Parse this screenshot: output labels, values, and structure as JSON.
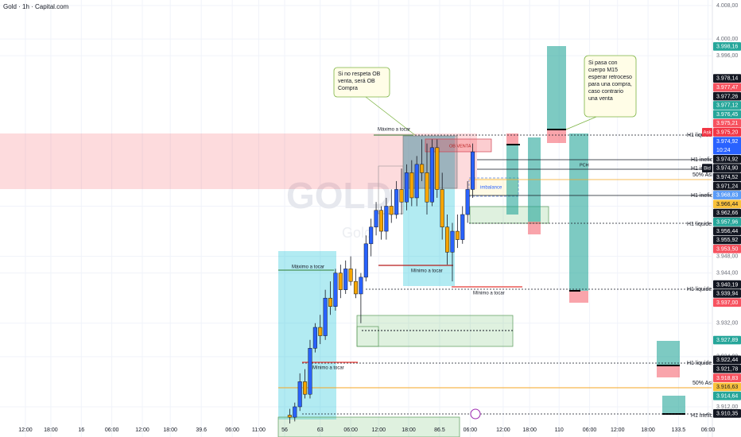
{
  "header": {
    "symbol": "Gold · 1h · Capital.com"
  },
  "watermark": {
    "symbol": "GOLD",
    "name": "Gold"
  },
  "chart_data": {
    "type": "candlestick",
    "x": [
      57,
      58,
      59,
      60,
      61,
      62,
      63,
      64,
      65,
      66,
      67,
      68,
      69,
      70,
      71,
      72,
      73,
      74,
      75,
      76,
      77,
      78,
      79,
      80,
      81,
      82,
      83,
      84,
      85,
      86,
      87,
      88,
      89,
      90,
      91,
      92,
      93
    ],
    "open": [
      3910,
      3909.5,
      3912,
      3918,
      3915,
      3926,
      3931,
      3929,
      3938,
      3936,
      3944,
      3940,
      3945,
      3942,
      3939,
      3943,
      3951,
      3955,
      3959,
      3954,
      3960,
      3958,
      3964,
      3961,
      3968,
      3962,
      3970,
      3968,
      3961,
      3974,
      3964,
      3955,
      3949,
      3954,
      3952,
      3958,
      3964
    ],
    "high": [
      3911.5,
      3913,
      3920,
      3921,
      3928,
      3932,
      3934,
      3940,
      3942,
      3945,
      3946,
      3947,
      3948,
      3945,
      3944,
      3953,
      3957,
      3961,
      3960,
      3962,
      3964,
      3966,
      3969,
      3970,
      3971,
      3972,
      3976,
      3975,
      3976,
      3976,
      3968,
      3958,
      3956,
      3958,
      3960,
      3966,
      3975
    ],
    "low": [
      3908,
      3908.5,
      3911,
      3914,
      3914,
      3925,
      3927,
      3928,
      3934,
      3935,
      3938,
      3939,
      3941,
      3938,
      3932,
      3942,
      3948,
      3953,
      3952,
      3952,
      3956,
      3957,
      3958,
      3959,
      3960,
      3960,
      3966,
      3958,
      3960,
      3962,
      3952,
      3946,
      3942,
      3950,
      3951,
      3956,
      3962
    ],
    "close": [
      3909.5,
      3912,
      3918,
      3915,
      3926,
      3931,
      3929,
      3938,
      3936,
      3944,
      3940,
      3945,
      3942,
      3939,
      3943,
      3951,
      3955,
      3959,
      3954,
      3960,
      3958,
      3964,
      3961,
      3968,
      3962,
      3970,
      3968,
      3961,
      3974,
      3964,
      3955,
      3949,
      3954,
      3952,
      3958,
      3964,
      3973
    ],
    "up_color": "#2962ff",
    "down_color": "#f7a600",
    "xlim": [
      0,
      140
    ],
    "ylim": [
      3904.77,
      4009.33
    ],
    "xticks": [
      {
        "value": 5,
        "label": "12:00"
      },
      {
        "value": 10,
        "label": "18:00"
      },
      16,
      {
        "value": 22,
        "label": "06:00"
      },
      {
        "value": 28,
        "label": "12:00"
      },
      {
        "value": 33.5,
        "label": "18:00"
      },
      39.6,
      {
        "value": 45.7,
        "label": "06:00"
      },
      {
        "value": 50.9,
        "label": "11:00"
      },
      56,
      63,
      {
        "value": 69,
        "label": "06:00"
      },
      {
        "value": 74.5,
        "label": "12:00"
      },
      {
        "value": 80.4,
        "label": "18:00"
      },
      86.5,
      {
        "value": 92.5,
        "label": "06:00"
      },
      {
        "value": 99,
        "label": "12:00"
      },
      {
        "value": 104.2,
        "label": "18:00"
      },
      110,
      {
        "value": 116,
        "label": "06:00"
      },
      {
        "value": 121.5,
        "label": "12:00"
      },
      {
        "value": 127.5,
        "label": "18:00"
      },
      133.5,
      {
        "value": 139.3,
        "label": "06:00"
      }
    ],
    "yticks": [
      {
        "value": 4008,
        "label": "4.008,00"
      },
      {
        "value": 4000,
        "label": "4.000,00"
      },
      {
        "value": 3996,
        "label": "3.996,00"
      },
      {
        "value": 3960,
        "label": "3.960,00"
      },
      {
        "value": 3948,
        "label": "3.948,00"
      },
      {
        "value": 3944,
        "label": "3.944,00"
      },
      {
        "value": 3932,
        "label": "3.932,00"
      },
      {
        "value": 3924,
        "label": "3.924,00"
      },
      {
        "value": 3912,
        "label": "3.912,00"
      }
    ],
    "grid": true
  },
  "price_tags": [
    {
      "value": 3998.16,
      "label": "3.998,16",
      "color": "#26a69a"
    },
    {
      "value": 3978.14,
      "label": "3.978,14",
      "color": "#131722"
    },
    {
      "value": 3977.47,
      "label": "3.977,47",
      "color": "#f7525f"
    },
    {
      "value": 3977.26,
      "label": "3.977,26",
      "color": "#131722"
    },
    {
      "value": 3977.12,
      "label": "3.977,12",
      "color": "#26a69a"
    },
    {
      "value": 3976.45,
      "label": "3.976,45",
      "color": "#26a69a"
    },
    {
      "value": 3975.21,
      "label": "3.975,21",
      "color": "#f7525f"
    },
    {
      "value": 3975.2,
      "label": "3.975,20",
      "color": "#f23645",
      "badge": "Ask"
    },
    {
      "value": 3974.92,
      "label": "3.974,92",
      "color": "#2962ff",
      "sub": "10:24"
    },
    {
      "value": 3974.92,
      "label": "3.974,92",
      "color": "#131722"
    },
    {
      "value": 3974.9,
      "label": "3.974,90",
      "color": "#131722",
      "badge": "Bid"
    },
    {
      "value": 3974.52,
      "label": "3.974,52",
      "color": "#131722"
    },
    {
      "value": 3971.24,
      "label": "3.971,24",
      "color": "#131722"
    },
    {
      "value": 3968.83,
      "label": "3.968,83",
      "color": "#5b9cf6"
    },
    {
      "value": 3966.44,
      "label": "3.966,44",
      "color": "#f9c23c"
    },
    {
      "value": 3962.66,
      "label": "3.962,66",
      "color": "#131722"
    },
    {
      "value": 3957.96,
      "label": "3.957,96",
      "color": "#26a69a"
    },
    {
      "value": 3956.44,
      "label": "3.956,44",
      "color": "#131722"
    },
    {
      "value": 3955.92,
      "label": "3.955,92",
      "color": "#131722"
    },
    {
      "value": 3953.5,
      "label": "3.953,50",
      "color": "#f7525f"
    },
    {
      "value": 3940.19,
      "label": "3.940,19",
      "color": "#131722"
    },
    {
      "value": 3939.94,
      "label": "3.939,94",
      "color": "#131722"
    },
    {
      "value": 3937.0,
      "label": "3.937,00",
      "color": "#f7525f"
    },
    {
      "value": 3927.89,
      "label": "3.927,89",
      "color": "#26a69a"
    },
    {
      "value": 3922.44,
      "label": "3.922,44",
      "color": "#131722"
    },
    {
      "value": 3921.78,
      "label": "3.921,78",
      "color": "#131722"
    },
    {
      "value": 3918.83,
      "label": "3.918,83",
      "color": "#f7525f"
    },
    {
      "value": 3916.63,
      "label": "3.916,63",
      "color": "#f9c23c"
    },
    {
      "value": 3914.64,
      "label": "3.914,64",
      "color": "#26a69a"
    },
    {
      "value": 3910.35,
      "label": "3.910,35",
      "color": "#131722"
    }
  ],
  "notes": {
    "ob": [
      "Si no respeta OB",
      "venta, será OB",
      "Compra"
    ],
    "m15": [
      "Si pasa con",
      "cuerpo M15",
      "esperar retroceso",
      "para una compra,",
      "caso contrario",
      "una venta"
    ]
  },
  "drawing_labels": [
    "Máximo a tocar",
    "Máximo a tocar",
    "Mínimo a tocar",
    "Mínimo a tocar",
    "Mínimo a tocar",
    "OB VENTA",
    "imbalance",
    "PCH"
  ],
  "levels": [
    "H1 liquidez",
    "H1 inefic",
    "H1 inefic",
    "50% Asia",
    "H1 inefic",
    "H1 liquidez",
    "H1 liquidez",
    "H1 liquidez",
    "50% Asia",
    "H1 inefic"
  ]
}
